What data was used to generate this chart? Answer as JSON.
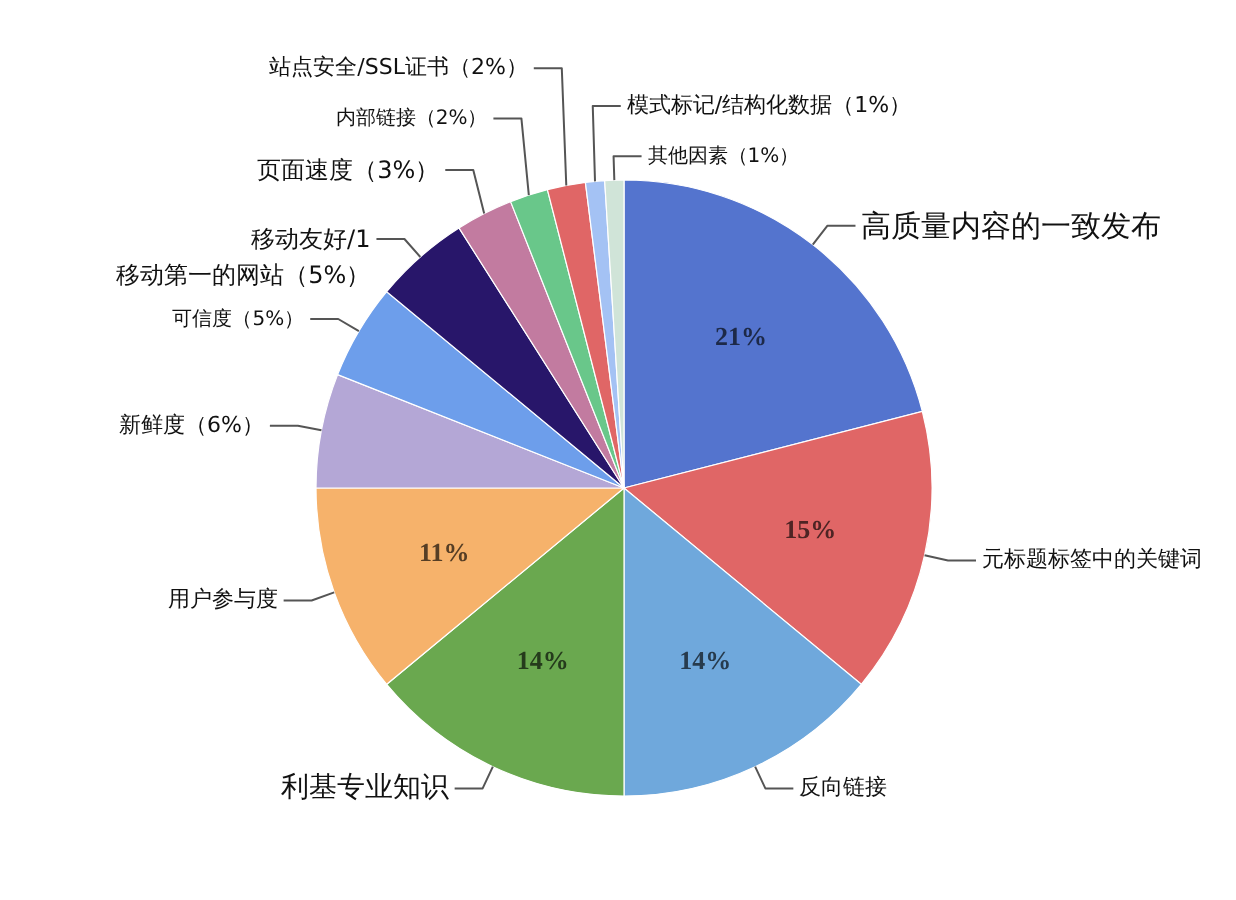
{
  "chart_data": {
    "type": "pie",
    "categories": [
      "高质量内容的一致发布",
      "元标题标签中的关键词",
      "反向链接",
      "利基专业知识",
      "用户参与度",
      "新鲜度（6%）",
      "可信度（5%）",
      "移动友好/1\n移动第一的网站（5%）",
      "页面速度（3%）",
      "内部链接（2%）",
      "站点安全/SSL证书（2%）",
      "模式标记/结构化数据（1%）",
      "其他因素（1%）"
    ],
    "values": [
      21,
      15,
      14,
      14,
      11,
      6,
      5,
      5,
      3,
      2,
      2,
      1,
      1
    ],
    "colors": [
      "#5474ce",
      "#e06666",
      "#6fa8dc",
      "#6aa84f",
      "#f6b26b",
      "#b4a7d6",
      "#6d9eeb",
      "#28166a",
      "#c27ba0",
      "#69c78a",
      "#e06666",
      "#a4c2f4",
      "#d0e4d8"
    ],
    "value_labels": [
      "21%",
      "15%",
      "14%",
      "14%",
      "11%",
      null,
      null,
      null,
      null,
      null,
      null,
      null,
      null
    ]
  }
}
